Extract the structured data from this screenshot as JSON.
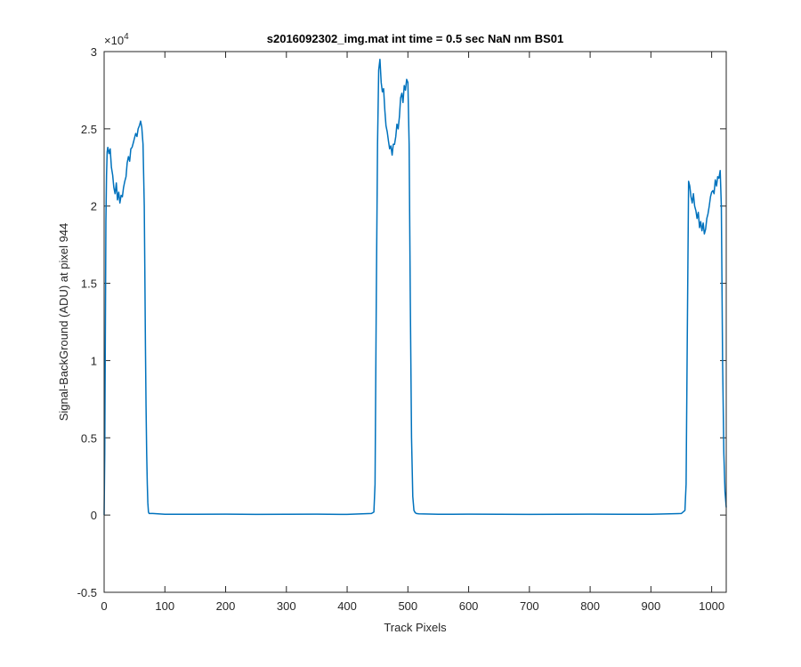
{
  "chart_data": {
    "type": "line",
    "title": "s2016092302_img.mat int time = 0.5 sec  NaN nm BS01",
    "xlabel": "Track Pixels",
    "ylabel": "Signal-BackGround (ADU) at pixel 944",
    "xlim": [
      0,
      1024
    ],
    "ylim": [
      -5000,
      30000
    ],
    "y_exponent_label": "×10",
    "y_exponent_power": "4",
    "x_ticks": [
      0,
      100,
      200,
      300,
      400,
      500,
      600,
      700,
      800,
      900,
      1000
    ],
    "x_tick_labels": [
      "0",
      "100",
      "200",
      "300",
      "400",
      "500",
      "600",
      "700",
      "800",
      "900",
      "1000"
    ],
    "y_ticks": [
      -5000,
      0,
      5000,
      10000,
      15000,
      20000,
      25000,
      30000
    ],
    "y_tick_labels": [
      "-0.5",
      "0",
      "0.5",
      "1",
      "1.5",
      "2",
      "2.5",
      "3"
    ],
    "grid": false,
    "line_color": "#0072BD",
    "series": [
      {
        "x": [
          0,
          1,
          2,
          3,
          4,
          5,
          6,
          8,
          10,
          12,
          14,
          16,
          18,
          20,
          22,
          24,
          26,
          28,
          30,
          32,
          34,
          36,
          38,
          40,
          42,
          44,
          46,
          48,
          50,
          52,
          54,
          56,
          58,
          60,
          62,
          64,
          66,
          67,
          68,
          69,
          70,
          71,
          72,
          73,
          74,
          75,
          76,
          80,
          100,
          150,
          200,
          250,
          300,
          350,
          400,
          440,
          444,
          446,
          448,
          450,
          452,
          454,
          456,
          458,
          460,
          462,
          464,
          466,
          468,
          470,
          472,
          474,
          476,
          478,
          480,
          482,
          484,
          486,
          488,
          490,
          492,
          494,
          496,
          498,
          500,
          502,
          504,
          506,
          508,
          510,
          512,
          514,
          518,
          550,
          600,
          650,
          700,
          750,
          800,
          850,
          900,
          950,
          956,
          958,
          960,
          962,
          964,
          966,
          968,
          970,
          972,
          974,
          976,
          978,
          980,
          982,
          984,
          986,
          988,
          990,
          992,
          994,
          996,
          998,
          1000,
          1002,
          1004,
          1006,
          1008,
          1010,
          1012,
          1014,
          1016,
          1018,
          1020,
          1022,
          1024
        ],
        "y": [
          0,
          4000,
          12000,
          19000,
          22000,
          23500,
          23800,
          23400,
          23700,
          22500,
          22000,
          21200,
          20800,
          21500,
          20400,
          20900,
          20200,
          20700,
          20600,
          21200,
          21600,
          21900,
          22800,
          23200,
          22900,
          23700,
          23800,
          24100,
          24400,
          24700,
          24500,
          25000,
          25200,
          25500,
          25100,
          24000,
          20000,
          16000,
          11000,
          7000,
          4000,
          2000,
          800,
          200,
          100,
          100,
          100,
          100,
          50,
          50,
          60,
          40,
          50,
          60,
          40,
          100,
          200,
          2000,
          14000,
          24000,
          28800,
          29500,
          28000,
          27400,
          27600,
          26200,
          25200,
          24800,
          24200,
          23700,
          23900,
          23300,
          24000,
          24000,
          24500,
          25300,
          25000,
          25800,
          27000,
          27300,
          26700,
          27800,
          27500,
          28200,
          28000,
          24000,
          14000,
          5000,
          1200,
          300,
          150,
          100,
          80,
          50,
          60,
          50,
          40,
          50,
          60,
          50,
          50,
          100,
          300,
          2000,
          12000,
          21600,
          21300,
          20600,
          20200,
          20800,
          20000,
          19700,
          19200,
          19600,
          18600,
          19000,
          18400,
          18900,
          18200,
          18500,
          19200,
          19500,
          20000,
          20600,
          20900,
          21000,
          20800,
          21700,
          21300,
          21900,
          21800,
          22300,
          20000,
          10000,
          4000,
          1500,
          500
        ]
      }
    ]
  }
}
